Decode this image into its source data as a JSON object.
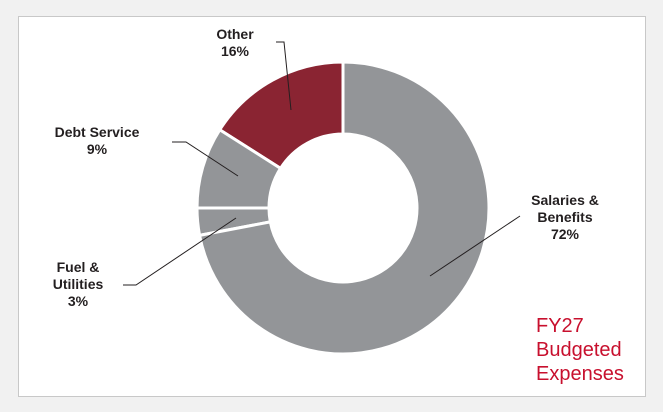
{
  "chart_data": {
    "type": "donut",
    "title": "FY27 Budgeted Expenses",
    "categories": [
      "Salaries & Benefits",
      "Fuel & Utilities",
      "Debt Service",
      "Other"
    ],
    "values": [
      72,
      3,
      9,
      16
    ],
    "value_labels": [
      "72%",
      "3%",
      "9%",
      "16%"
    ],
    "colors": [
      "#939598",
      "#939598",
      "#939598",
      "#8a2432"
    ]
  }
}
